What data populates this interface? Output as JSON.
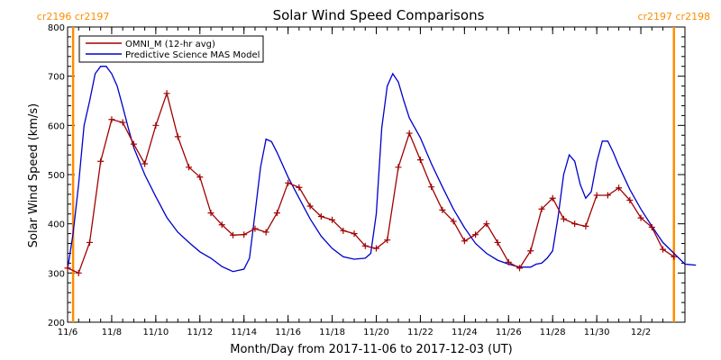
{
  "chart_data": {
    "type": "line",
    "title": "Solar Wind Speed Comparisons",
    "xlabel": "Month/Day from 2017-11-06 to 2017-12-03 (UT)",
    "ylabel": "Solar Wind Speed (km/s)",
    "xlim": [
      "2017-11-06",
      "2017-12-04"
    ],
    "ylim": [
      200,
      800
    ],
    "yticks": [
      200,
      300,
      400,
      500,
      600,
      700,
      800
    ],
    "xticks": [
      {
        "label": "11/6",
        "date": "2017-11-06"
      },
      {
        "label": "11/8",
        "date": "2017-11-08"
      },
      {
        "label": "11/10",
        "date": "2017-11-10"
      },
      {
        "label": "11/12",
        "date": "2017-11-12"
      },
      {
        "label": "11/14",
        "date": "2017-11-14"
      },
      {
        "label": "11/16",
        "date": "2017-11-16"
      },
      {
        "label": "11/18",
        "date": "2017-11-18"
      },
      {
        "label": "11/20",
        "date": "2017-11-20"
      },
      {
        "label": "11/22",
        "date": "2017-11-22"
      },
      {
        "label": "11/24",
        "date": "2017-11-24"
      },
      {
        "label": "11/26",
        "date": "2017-11-26"
      },
      {
        "label": "11/28",
        "date": "2017-11-28"
      },
      {
        "label": "11/30",
        "date": "2017-11-30"
      },
      {
        "label": "12/2",
        "date": "2017-12-02"
      }
    ],
    "carrington_markers": [
      {
        "date": "2017-11-06 06:00",
        "left_label": "cr2196",
        "right_label": "cr2197"
      },
      {
        "date": "2017-12-03 12:00",
        "left_label": "cr2197",
        "right_label": "cr2198"
      }
    ],
    "marker_color": "#ff8c00",
    "legend_position": "top-left",
    "series": [
      {
        "name": "OMNI_M (12-hr avg)",
        "color": "#a00000",
        "marker": "plus",
        "points": [
          [
            "2017-11-06 00:00",
            310
          ],
          [
            "2017-11-06 12:00",
            300
          ],
          [
            "2017-11-07 00:00",
            362
          ],
          [
            "2017-11-07 12:00",
            527
          ],
          [
            "2017-11-08 00:00",
            612
          ],
          [
            "2017-11-08 12:00",
            606
          ],
          [
            "2017-11-09 00:00",
            562
          ],
          [
            "2017-11-09 12:00",
            522
          ],
          [
            "2017-11-10 00:00",
            600
          ],
          [
            "2017-11-10 12:00",
            665
          ],
          [
            "2017-11-11 00:00",
            577
          ],
          [
            "2017-11-11 12:00",
            515
          ],
          [
            "2017-11-12 00:00",
            495
          ],
          [
            "2017-11-12 12:00",
            422
          ],
          [
            "2017-11-13 00:00",
            398
          ],
          [
            "2017-11-13 12:00",
            377
          ],
          [
            "2017-11-14 00:00",
            378
          ],
          [
            "2017-11-14 12:00",
            390
          ],
          [
            "2017-11-15 00:00",
            383
          ],
          [
            "2017-11-15 12:00",
            422
          ],
          [
            "2017-11-16 00:00",
            483
          ],
          [
            "2017-11-16 12:00",
            474
          ],
          [
            "2017-11-17 00:00",
            436
          ],
          [
            "2017-11-17 12:00",
            415
          ],
          [
            "2017-11-18 00:00",
            408
          ],
          [
            "2017-11-18 12:00",
            386
          ],
          [
            "2017-11-19 00:00",
            380
          ],
          [
            "2017-11-19 12:00",
            355
          ],
          [
            "2017-11-20 00:00",
            350
          ],
          [
            "2017-11-20 12:00",
            367
          ],
          [
            "2017-11-21 00:00",
            515
          ],
          [
            "2017-11-21 12:00",
            584
          ],
          [
            "2017-11-22 00:00",
            530
          ],
          [
            "2017-11-22 12:00",
            475
          ],
          [
            "2017-11-23 00:00",
            428
          ],
          [
            "2017-11-23 12:00",
            405
          ],
          [
            "2017-11-24 00:00",
            365
          ],
          [
            "2017-11-24 12:00",
            378
          ],
          [
            "2017-11-25 00:00",
            400
          ],
          [
            "2017-11-25 12:00",
            362
          ],
          [
            "2017-11-26 00:00",
            322
          ],
          [
            "2017-11-26 12:00",
            310
          ],
          [
            "2017-11-27 00:00",
            345
          ],
          [
            "2017-11-27 12:00",
            430
          ],
          [
            "2017-11-28 00:00",
            452
          ],
          [
            "2017-11-28 12:00",
            410
          ],
          [
            "2017-11-29 00:00",
            400
          ],
          [
            "2017-11-29 12:00",
            395
          ],
          [
            "2017-11-30 00:00",
            458
          ],
          [
            "2017-11-30 12:00",
            458
          ],
          [
            "2017-12-01 00:00",
            473
          ],
          [
            "2017-12-01 12:00",
            448
          ],
          [
            "2017-12-02 00:00",
            412
          ],
          [
            "2017-12-02 12:00",
            393
          ],
          [
            "2017-12-03 00:00",
            348
          ],
          [
            "2017-12-03 12:00",
            333
          ]
        ]
      },
      {
        "name": "Predictive Science MAS Model",
        "color": "#0000cc",
        "marker": "none",
        "points": [
          [
            "2017-11-06 00:00",
            308
          ],
          [
            "2017-11-06 06:00",
            380
          ],
          [
            "2017-11-06 12:00",
            480
          ],
          [
            "2017-11-06 18:00",
            600
          ],
          [
            "2017-11-07 00:00",
            650
          ],
          [
            "2017-11-07 06:00",
            705
          ],
          [
            "2017-11-07 12:00",
            720
          ],
          [
            "2017-11-07 18:00",
            720
          ],
          [
            "2017-11-08 00:00",
            705
          ],
          [
            "2017-11-08 06:00",
            680
          ],
          [
            "2017-11-08 12:00",
            638
          ],
          [
            "2017-11-08 18:00",
            595
          ],
          [
            "2017-11-09 00:00",
            555
          ],
          [
            "2017-11-09 12:00",
            500
          ],
          [
            "2017-11-10 00:00",
            455
          ],
          [
            "2017-11-10 12:00",
            413
          ],
          [
            "2017-11-11 00:00",
            383
          ],
          [
            "2017-11-11 12:00",
            362
          ],
          [
            "2017-11-12 00:00",
            343
          ],
          [
            "2017-11-12 12:00",
            330
          ],
          [
            "2017-11-13 00:00",
            313
          ],
          [
            "2017-11-13 12:00",
            303
          ],
          [
            "2017-11-14 00:00",
            308
          ],
          [
            "2017-11-14 06:00",
            330
          ],
          [
            "2017-11-14 12:00",
            420
          ],
          [
            "2017-11-14 18:00",
            515
          ],
          [
            "2017-11-15 00:00",
            572
          ],
          [
            "2017-11-15 06:00",
            567
          ],
          [
            "2017-11-15 12:00",
            545
          ],
          [
            "2017-11-16 00:00",
            495
          ],
          [
            "2017-11-16 12:00",
            452
          ],
          [
            "2017-11-17 00:00",
            410
          ],
          [
            "2017-11-17 12:00",
            375
          ],
          [
            "2017-11-18 00:00",
            350
          ],
          [
            "2017-11-18 12:00",
            333
          ],
          [
            "2017-11-19 00:00",
            328
          ],
          [
            "2017-11-19 12:00",
            330
          ],
          [
            "2017-11-19 18:00",
            340
          ],
          [
            "2017-11-20 00:00",
            420
          ],
          [
            "2017-11-20 06:00",
            595
          ],
          [
            "2017-11-20 12:00",
            680
          ],
          [
            "2017-11-20 18:00",
            705
          ],
          [
            "2017-11-21 00:00",
            688
          ],
          [
            "2017-11-21 06:00",
            650
          ],
          [
            "2017-11-21 12:00",
            615
          ],
          [
            "2017-11-22 00:00",
            575
          ],
          [
            "2017-11-22 12:00",
            522
          ],
          [
            "2017-11-23 00:00",
            475
          ],
          [
            "2017-11-23 12:00",
            430
          ],
          [
            "2017-11-24 00:00",
            392
          ],
          [
            "2017-11-24 12:00",
            360
          ],
          [
            "2017-11-25 00:00",
            340
          ],
          [
            "2017-11-25 12:00",
            326
          ],
          [
            "2017-11-26 00:00",
            318
          ],
          [
            "2017-11-26 12:00",
            312
          ],
          [
            "2017-11-27 00:00",
            312
          ],
          [
            "2017-11-27 06:00",
            318
          ],
          [
            "2017-11-27 12:00",
            320
          ],
          [
            "2017-11-27 18:00",
            330
          ],
          [
            "2017-11-28 00:00",
            345
          ],
          [
            "2017-11-28 06:00",
            415
          ],
          [
            "2017-11-28 12:00",
            500
          ],
          [
            "2017-11-28 18:00",
            540
          ],
          [
            "2017-11-29 00:00",
            527
          ],
          [
            "2017-11-29 06:00",
            480
          ],
          [
            "2017-11-29 12:00",
            452
          ],
          [
            "2017-11-29 18:00",
            465
          ],
          [
            "2017-11-30 00:00",
            525
          ],
          [
            "2017-11-30 06:00",
            568
          ],
          [
            "2017-11-30 12:00",
            568
          ],
          [
            "2017-11-30 18:00",
            545
          ],
          [
            "2017-12-01 00:00",
            518
          ],
          [
            "2017-12-01 12:00",
            470
          ],
          [
            "2017-12-02 00:00",
            430
          ],
          [
            "2017-12-02 12:00",
            395
          ],
          [
            "2017-12-03 00:00",
            362
          ],
          [
            "2017-12-03 12:00",
            340
          ],
          [
            "2017-12-04 00:00",
            318
          ],
          [
            "2017-12-04 12:00",
            316
          ]
        ]
      }
    ]
  }
}
